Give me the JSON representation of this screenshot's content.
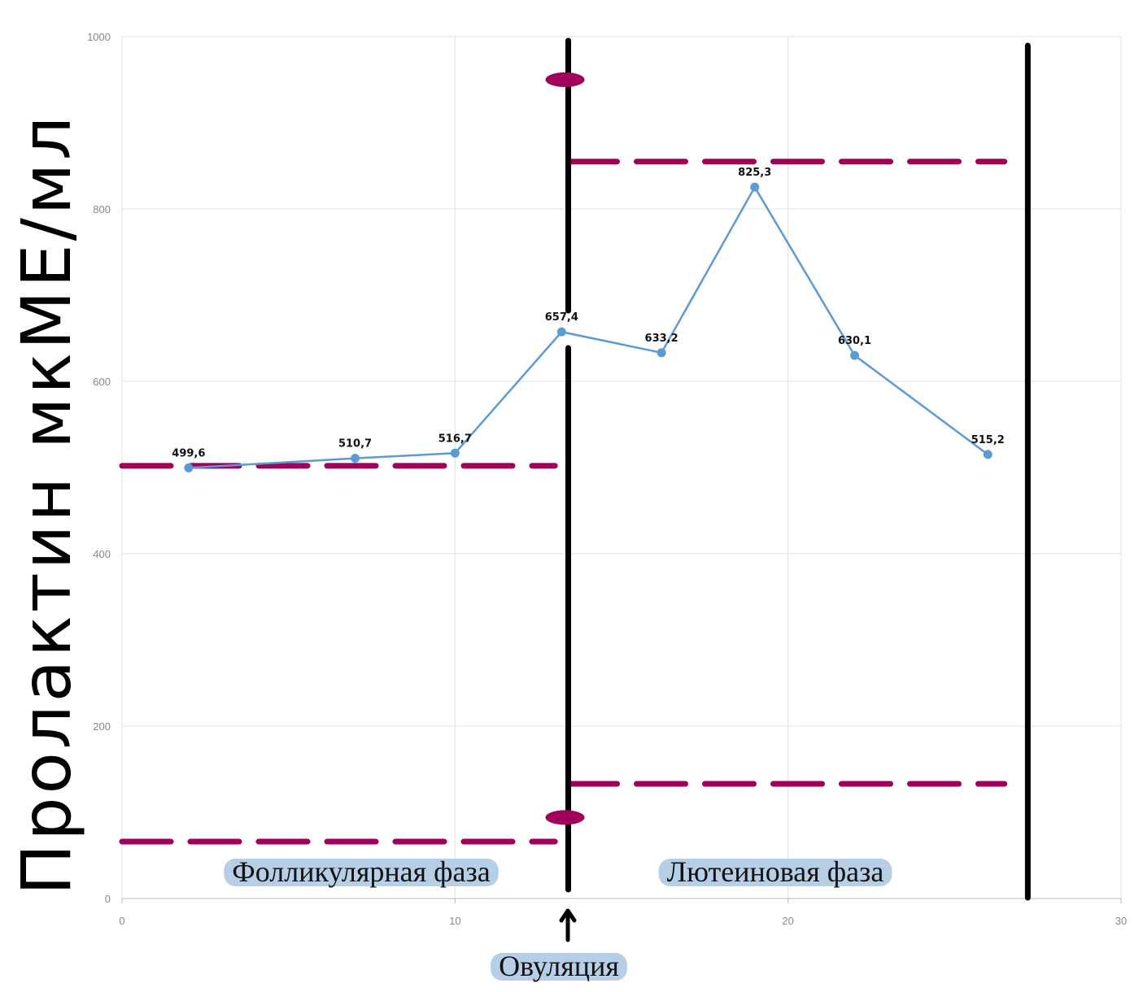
{
  "chart_data": {
    "type": "line",
    "title": "",
    "xlabel": "",
    "ylabel": "Пролактин мкМЕ/мл",
    "xlim": [
      0,
      30
    ],
    "ylim": [
      0,
      1000
    ],
    "x_ticks": [
      "0",
      "10",
      "20",
      "30"
    ],
    "y_ticks": [
      "0",
      "200",
      "400",
      "600",
      "800",
      "1000"
    ],
    "grid": true,
    "series": [
      {
        "name": "Пролактин",
        "color": "#5b9bd5",
        "points": [
          {
            "x": 2,
            "y": 499.6,
            "label": "499,6"
          },
          {
            "x": 7,
            "y": 510.7,
            "label": "510,7"
          },
          {
            "x": 10,
            "y": 516.7,
            "label": "516,7"
          },
          {
            "x": 13.2,
            "y": 657.4,
            "label": "657,4"
          },
          {
            "x": 16.2,
            "y": 633.2,
            "label": "633,2"
          },
          {
            "x": 19,
            "y": 825.3,
            "label": "825,3"
          },
          {
            "x": 22,
            "y": 630.1,
            "label": "630,1"
          },
          {
            "x": 26,
            "y": 515.2,
            "label": "515,2"
          }
        ]
      }
    ],
    "phase_lines_x": [
      13.4,
      27.2
    ],
    "reference_ranges": [
      {
        "phase": "follicular",
        "x_range": [
          0,
          13
        ],
        "upper": 502,
        "lower": 66
      },
      {
        "phase": "luteal",
        "x_range": [
          13.4,
          26.5
        ],
        "upper": 855,
        "lower": 133
      }
    ],
    "ovulation_marks_y": [
      950,
      94
    ],
    "annotations": {
      "follicular": "Фолликулярная фаза",
      "luteal": "Лютеиновая фаза",
      "ovulation": "Овуляция"
    },
    "colors": {
      "line": "#5b9bd5",
      "reference": "#a0005a",
      "phase_line": "#000000",
      "label_bg": "#b7cfe6",
      "grid": "#e2e2e2"
    }
  }
}
